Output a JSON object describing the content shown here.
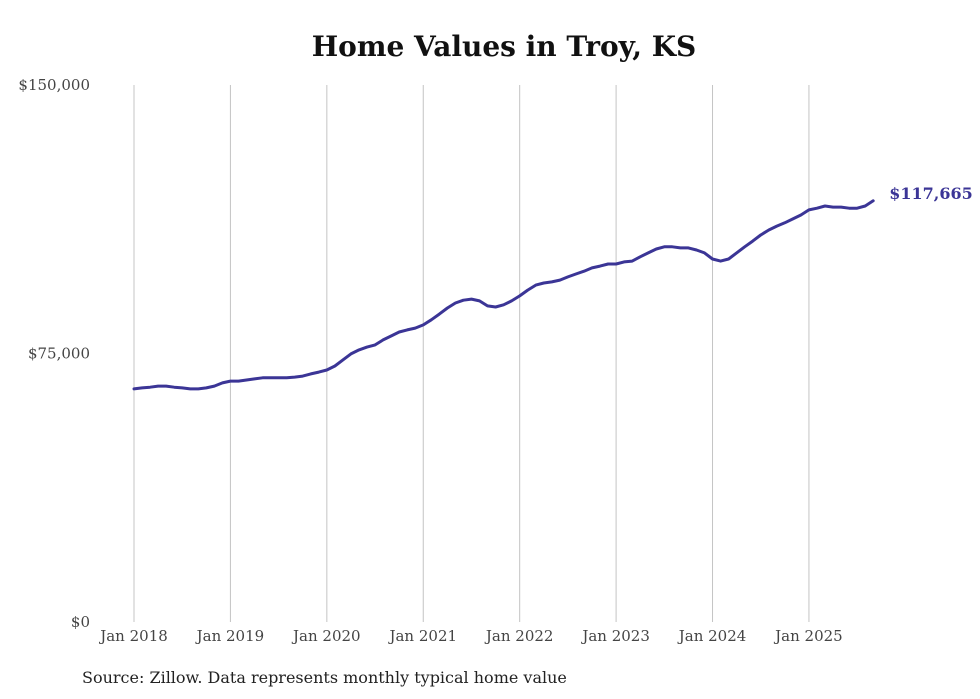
{
  "chart_data": {
    "type": "line",
    "title": "Home Values in Troy, KS",
    "source": "Source: Zillow. Data represents monthly typical home value",
    "xlabel": "",
    "ylabel": "",
    "ylim": [
      0,
      150000
    ],
    "y_ticks": [
      {
        "value": 0,
        "label": "$0"
      },
      {
        "value": 75000,
        "label": "$75,000"
      },
      {
        "value": 150000,
        "label": "$150,000"
      }
    ],
    "x_ticks": [
      {
        "index": 0,
        "label": "Jan 2018"
      },
      {
        "index": 12,
        "label": "Jan 2019"
      },
      {
        "index": 24,
        "label": "Jan 2020"
      },
      {
        "index": 36,
        "label": "Jan 2021"
      },
      {
        "index": 48,
        "label": "Jan 2022"
      },
      {
        "index": 60,
        "label": "Jan 2023"
      },
      {
        "index": 72,
        "label": "Jan 2024"
      },
      {
        "index": 84,
        "label": "Jan 2025"
      }
    ],
    "grid": "vertical",
    "x_start": "Jan 2018",
    "x_end": "Sep 2025",
    "frequency": "monthly",
    "line_color": "#3b3596",
    "end_label": "$117,665",
    "series": [
      {
        "name": "Typical home value",
        "values": [
          65100,
          65400,
          65600,
          65900,
          65900,
          65600,
          65400,
          65100,
          65100,
          65400,
          65900,
          66800,
          67300,
          67300,
          67600,
          67900,
          68200,
          68200,
          68200,
          68200,
          68400,
          68700,
          69300,
          69800,
          70400,
          71500,
          73200,
          74900,
          76000,
          76800,
          77400,
          78800,
          79900,
          81000,
          81600,
          82100,
          83000,
          84400,
          86000,
          87700,
          89100,
          89900,
          90200,
          89700,
          88300,
          88000,
          88600,
          89700,
          91100,
          92700,
          94100,
          94700,
          95000,
          95500,
          96400,
          97200,
          98000,
          98900,
          99400,
          100000,
          100000,
          100600,
          100800,
          102000,
          103100,
          104200,
          104800,
          104800,
          104500,
          104500,
          103900,
          103100,
          101400,
          100800,
          101400,
          103100,
          104800,
          106400,
          108100,
          109500,
          110600,
          111500,
          112600,
          113700,
          115100,
          115600,
          116200,
          115900,
          115900,
          115600,
          115600,
          116200,
          117665
        ]
      }
    ]
  }
}
